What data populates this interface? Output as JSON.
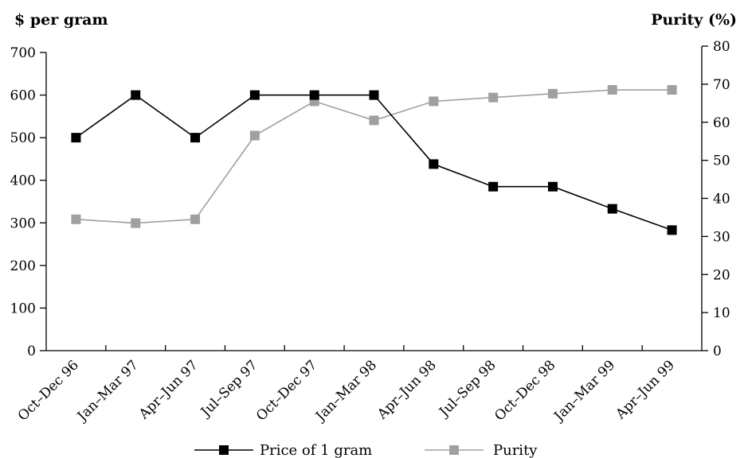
{
  "chart_data": {
    "type": "line",
    "y_left_title": "$ per gram",
    "y_right_title": "Purity (%)",
    "categories": [
      "Oct–Dec 96",
      "Jan–Mar 97",
      "Apr–Jun 97",
      "Jul–Sep 97",
      "Oct–Dec 97",
      "Jan–Mar 98",
      "Apr–Jun 98",
      "Jul–Sep 98",
      "Oct–Dec 98",
      "Jan–Mar 99",
      "Apr–Jun 99"
    ],
    "y_left": {
      "min": 0,
      "max": 700,
      "ticks": [
        0,
        100,
        200,
        300,
        400,
        500,
        600,
        700
      ]
    },
    "y_right": {
      "min": 0,
      "max": 80,
      "ticks": [
        0,
        10,
        20,
        30,
        40,
        50,
        60,
        70,
        80
      ]
    },
    "series": [
      {
        "name": "Price of 1 gram",
        "axis": "left",
        "color": "#000000",
        "values": [
          500,
          600,
          500,
          600,
          600,
          600,
          438,
          385,
          385,
          333,
          283
        ]
      },
      {
        "name": "Purity",
        "axis": "right",
        "color": "#a0a0a0",
        "values": [
          34.5,
          33.5,
          34.5,
          56.5,
          65.5,
          60.5,
          65.5,
          66.5,
          67.5,
          68.5,
          68.5
        ]
      }
    ],
    "legend_position": "bottom",
    "grid": false
  }
}
